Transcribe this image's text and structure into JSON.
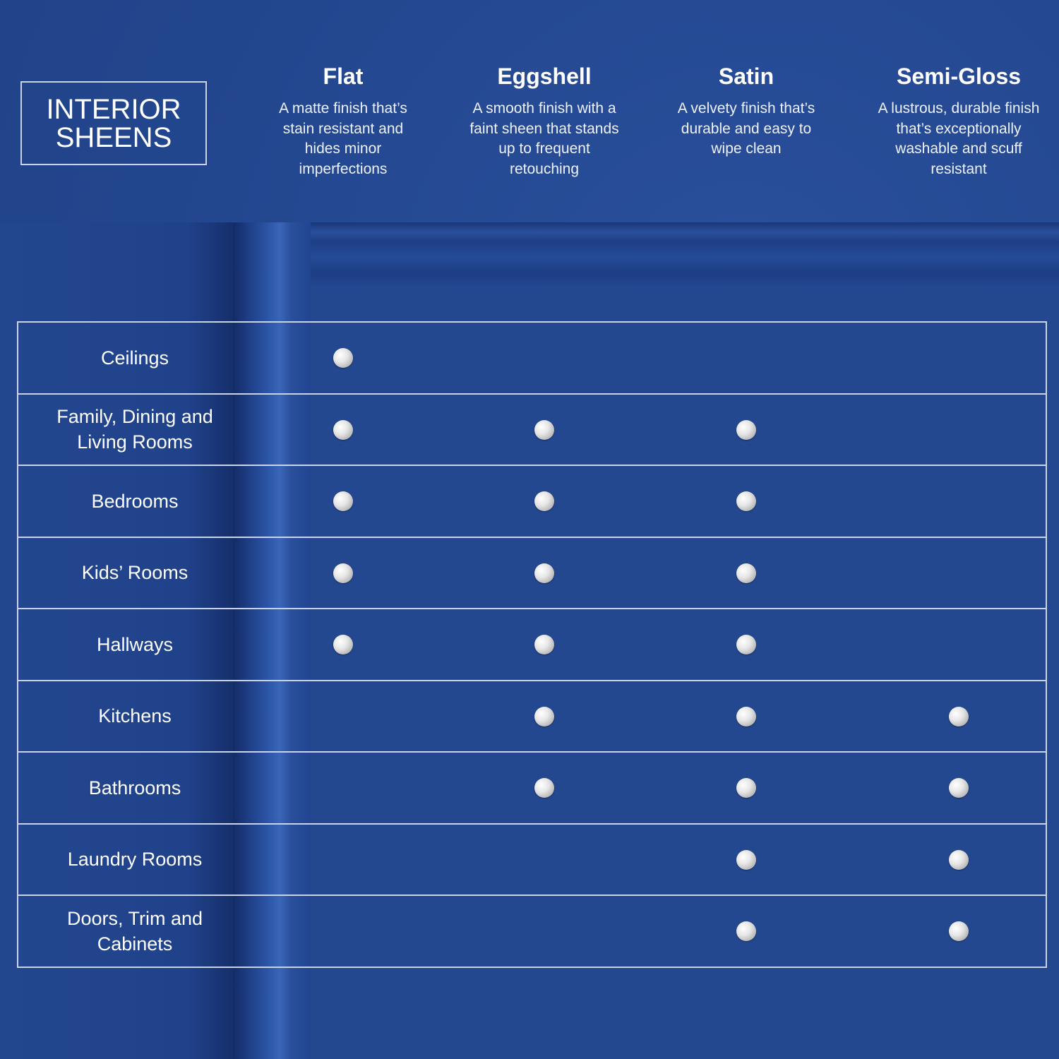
{
  "title": "INTERIOR SHEENS",
  "columns": [
    {
      "name": "Flat",
      "description": "A matte finish that’s stain resistant and hides minor imperfections"
    },
    {
      "name": "Eggshell",
      "description": "A smooth finish with a faint sheen that stands up to frequent retouching"
    },
    {
      "name": "Satin",
      "description": "A velvety finish that’s durable and easy to wipe clean"
    },
    {
      "name": "Semi-Gloss",
      "description": "A lustrous, durable finish that’s exceptionally washable and scuff resistant"
    }
  ],
  "rows": [
    {
      "label": "Ceilings",
      "marks": [
        true,
        false,
        false,
        false
      ]
    },
    {
      "label": "Family, Dining and Living Rooms",
      "marks": [
        true,
        true,
        true,
        false
      ]
    },
    {
      "label": "Bedrooms",
      "marks": [
        true,
        true,
        true,
        false
      ]
    },
    {
      "label": "Kids’ Rooms",
      "marks": [
        true,
        true,
        true,
        false
      ]
    },
    {
      "label": "Hallways",
      "marks": [
        true,
        true,
        true,
        false
      ]
    },
    {
      "label": "Kitchens",
      "marks": [
        false,
        true,
        true,
        true
      ]
    },
    {
      "label": "Bathrooms",
      "marks": [
        false,
        true,
        true,
        true
      ]
    },
    {
      "label": "Laundry Rooms",
      "marks": [
        false,
        false,
        true,
        true
      ]
    },
    {
      "label": "Doors, Trim and Cabinets",
      "marks": [
        false,
        false,
        true,
        true
      ]
    }
  ],
  "colors": {
    "background": "#23478f",
    "lines": "#c9d3ea",
    "dot": "#e6e6e6"
  }
}
